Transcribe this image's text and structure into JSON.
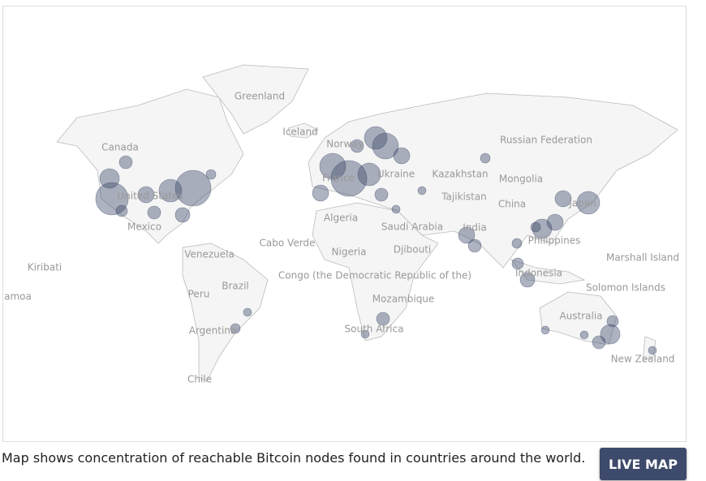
{
  "map": {
    "labels": [
      "Greenland",
      "Iceland",
      "Canada",
      "Norway",
      "Russian Federation",
      "France",
      "Ukraine",
      "Kazakhstan",
      "Mongolia",
      "United States",
      "Tajikistan",
      "China",
      "Japan",
      "Algeria",
      "Mexico",
      "Saudi Arabia",
      "India",
      "Cabo Verde",
      "Philippines",
      "Nigeria",
      "Djibouti",
      "Venezuela",
      "Marshall Island",
      "Kiribati",
      "Congo (the Democratic Republic of the)",
      "Indonesia",
      "Brazil",
      "Solomon Islands",
      "amoa",
      "Peru",
      "Mozambique",
      "Australia",
      "Argentina",
      "South Africa",
      "New Zealand",
      "Chile"
    ]
  },
  "caption": "Map shows concentration of reachable Bitcoin nodes found in countries around the world.",
  "button": "LIVE MAP"
}
